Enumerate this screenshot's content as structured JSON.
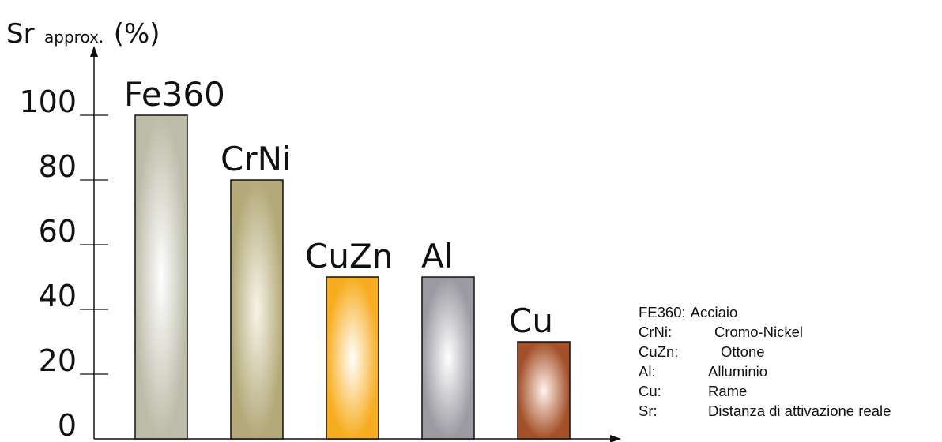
{
  "chart_data": {
    "type": "bar",
    "ylabel_main": "Sr",
    "ylabel_sub": "approx.",
    "ylabel_unit": "(%)",
    "xlabel": "",
    "ylim": [
      0,
      100
    ],
    "yticks": [
      "0",
      "20",
      "40",
      "60",
      "80",
      "100"
    ],
    "categories": [
      "Fe360",
      "CrNi",
      "CuZn",
      "Al",
      "Cu"
    ],
    "values": [
      100,
      80,
      50,
      50,
      30
    ],
    "bar_colors": [
      {
        "center": "#ffffff",
        "edge": "#bcbca9"
      },
      {
        "center": "#f6f4e8",
        "edge": "#b3a979"
      },
      {
        "center": "#ffffff",
        "edge": "#f8ad20"
      },
      {
        "center": "#ffffff",
        "edge": "#9b9aa1"
      },
      {
        "center": "#fff4ee",
        "edge": "#a45028"
      }
    ]
  },
  "legend": [
    {
      "abbr": "FE360:",
      "desc": "Acciaio"
    },
    {
      "abbr": "CrNi:",
      "desc": "Cromo-Nickel"
    },
    {
      "abbr": "CuZn:",
      "desc": "Ottone"
    },
    {
      "abbr": "Al:",
      "desc": "Alluminio"
    },
    {
      "abbr": "Cu:",
      "desc": "Rame"
    },
    {
      "abbr": "Sr:",
      "desc": "Distanza di attivazione reale"
    }
  ]
}
